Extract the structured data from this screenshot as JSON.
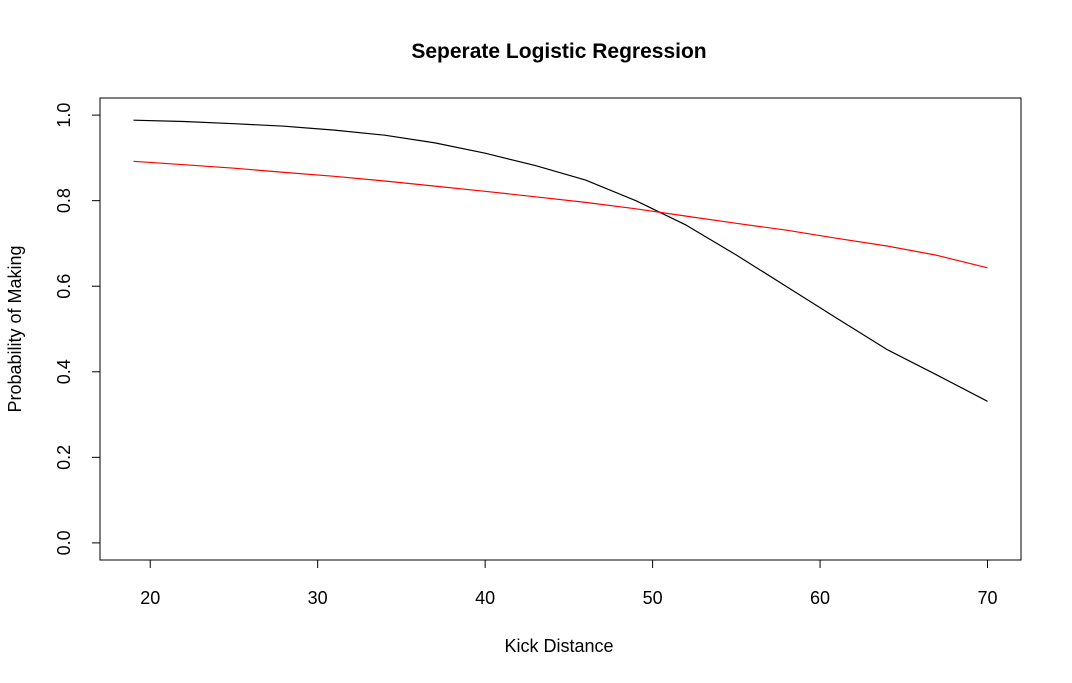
{
  "chart_data": {
    "type": "line",
    "title": "Seperate Logistic Regression",
    "xlabel": "Kick Distance",
    "ylabel": "Probability of Making",
    "xlim": [
      17,
      72
    ],
    "ylim": [
      -0.04,
      1.04
    ],
    "x_ticks": [
      20,
      30,
      40,
      50,
      60,
      70
    ],
    "y_ticks": [
      0.0,
      0.2,
      0.4,
      0.6,
      0.8,
      1.0
    ],
    "y_tick_labels": [
      "0.0",
      "0.2",
      "0.4",
      "0.6",
      "0.8",
      "1.0"
    ],
    "grid": false,
    "series": [
      {
        "color": "#000000",
        "x": [
          19,
          22,
          25,
          28,
          31,
          34,
          37,
          40,
          43,
          46,
          49,
          52,
          55,
          58,
          61,
          64,
          67,
          70
        ],
        "y": [
          0.988,
          0.985,
          0.98,
          0.974,
          0.965,
          0.953,
          0.935,
          0.911,
          0.882,
          0.848,
          0.8,
          0.743,
          0.673,
          0.599,
          0.525,
          0.452,
          0.392,
          0.331
        ]
      },
      {
        "color": "#ff0000",
        "x": [
          19,
          22,
          25,
          28,
          31,
          34,
          37,
          40,
          43,
          46,
          49,
          52,
          55,
          58,
          61,
          64,
          67,
          70
        ],
        "y": [
          0.892,
          0.884,
          0.876,
          0.866,
          0.857,
          0.846,
          0.834,
          0.822,
          0.809,
          0.796,
          0.781,
          0.764,
          0.747,
          0.731,
          0.712,
          0.694,
          0.672,
          0.643
        ]
      }
    ]
  }
}
